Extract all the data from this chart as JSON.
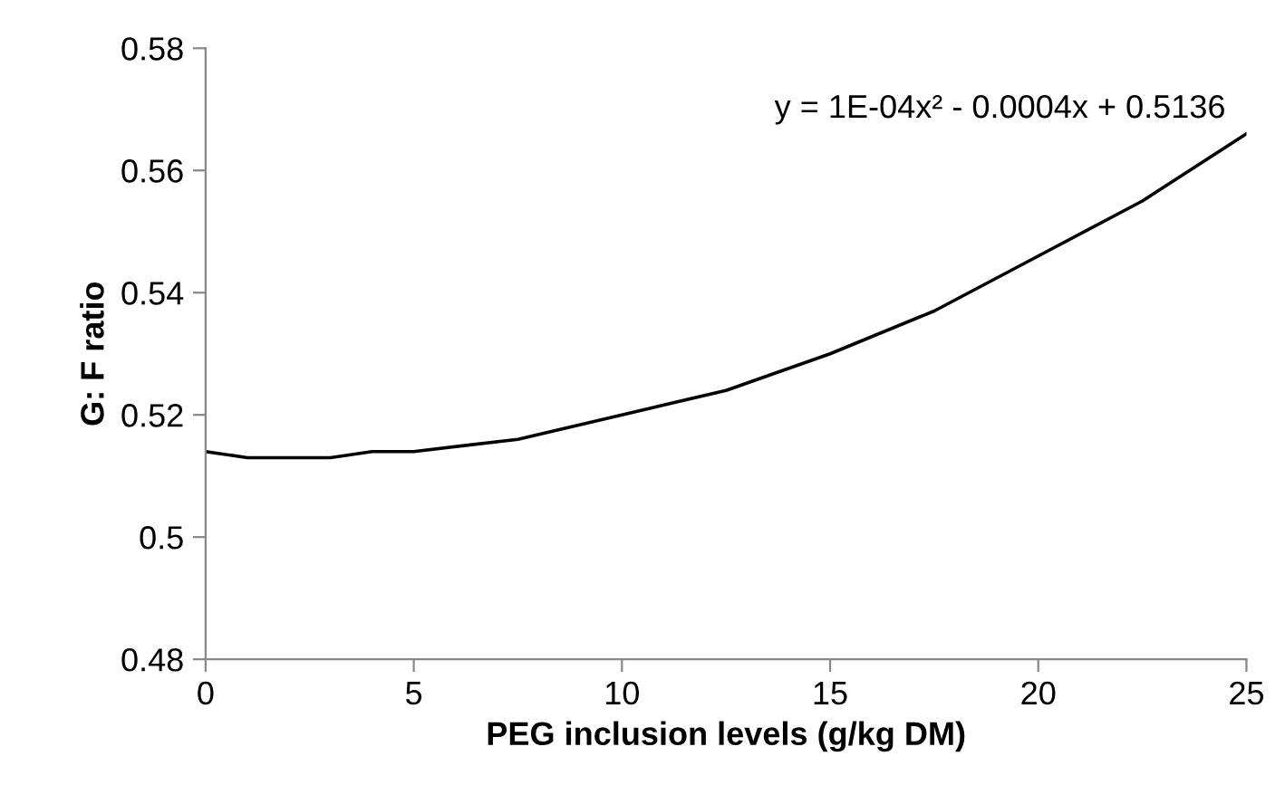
{
  "chart_data": {
    "type": "line",
    "xlabel": "PEG inclusion levels (g/kg DM)",
    "ylabel": "G: F ratio",
    "annotations": [
      "y = 1E-04x² - 0.0004x + 0.5136"
    ],
    "series": [
      {
        "color": "#000000",
        "x": [
          0,
          1,
          2,
          3,
          4,
          5,
          7.5,
          10,
          12.5,
          15,
          17.5,
          20,
          22.5,
          25
        ],
        "values": [
          0.514,
          0.513,
          0.513,
          0.513,
          0.514,
          0.514,
          0.516,
          0.52,
          0.524,
          0.53,
          0.537,
          0.546,
          0.555,
          0.566
        ]
      }
    ],
    "xlim": [
      0,
      25
    ],
    "xticks": [
      0,
      5,
      10,
      15,
      20,
      25
    ],
    "ylim": [
      0.48,
      0.58
    ],
    "yticks": [
      0.48,
      0.5,
      0.52,
      0.54,
      0.56,
      0.58
    ],
    "grid": false,
    "legend": false,
    "marker": "none",
    "line_style": "solid"
  }
}
